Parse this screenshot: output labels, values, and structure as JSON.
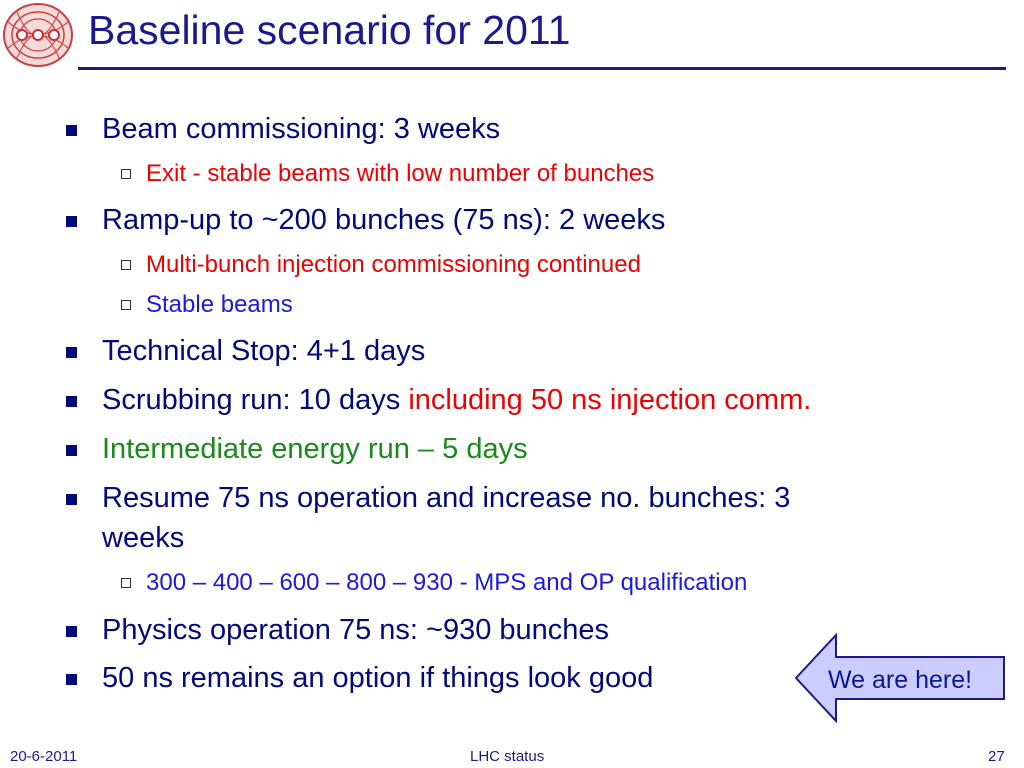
{
  "slide": {
    "title": "Baseline scenario for 2011",
    "bullets": [
      {
        "text": "Beam commissioning: 3 weeks"
      },
      {
        "text": "Exit - stable beams with low number of bunches"
      },
      {
        "text": "Ramp-up to ~200 bunches (75 ns): 2 weeks"
      },
      {
        "text": "Multi-bunch injection commissioning continued"
      },
      {
        "text": "Stable beams"
      },
      {
        "text": "Technical Stop: 4+1 days"
      },
      {
        "text": "Scrubbing run: 10 days ",
        "highlight": "including 50 ns injection comm."
      },
      {
        "text": "Intermediate energy run – 5 days"
      },
      {
        "text": "Resume 75 ns operation and increase no. bunches: 3",
        "text2": "weeks"
      },
      {
        "text": "300 – 400 – 600 – 800 – 930 - MPS and OP qualification"
      },
      {
        "text": "Physics operation 75 ns:  ~930 bunches"
      },
      {
        "text": "50 ns remains an option if things look good"
      }
    ],
    "callout": "We are here!"
  },
  "colors": {
    "title": "#1a1a8e",
    "body": "#000a7a",
    "red": "#ee0000",
    "blue": "#1a1add",
    "green": "#1a8a1a",
    "callout_fill": "#ccccff"
  },
  "footer": {
    "date": "20-6-2011",
    "center": "LHC status",
    "page": "27"
  }
}
